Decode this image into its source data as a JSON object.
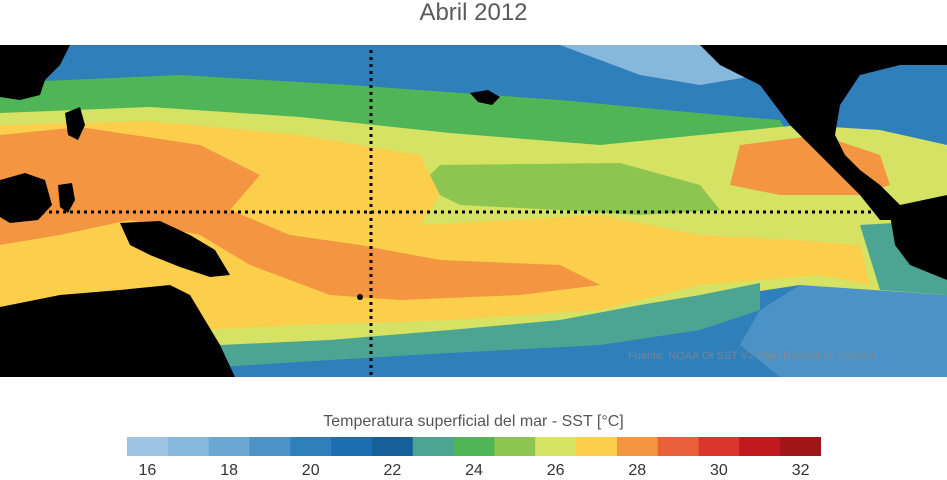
{
  "title": "Abril 2012",
  "credit": "Fuente: NOAA OI SST V2 High Resolution Dataset",
  "colorbar": {
    "title": "Temperatura superficial del mar - SST  [°C]",
    "colors": [
      "#9dc3e2",
      "#86b7dc",
      "#6aa7d3",
      "#4b93c6",
      "#2f7fba",
      "#1b6eb0",
      "#156099",
      "#4ba592",
      "#4fb556",
      "#8cc54f",
      "#d5e264",
      "#fbcf4b",
      "#f39541",
      "#e9603a",
      "#d8362f",
      "#c2191f",
      "#a11619"
    ],
    "tick_labels": [
      "16",
      "18",
      "20",
      "22",
      "24",
      "26",
      "28",
      "30",
      "32"
    ]
  },
  "colors": {
    "land": "#000000",
    "reference_lines": "#000000",
    "legend_accent": "#f39541"
  }
}
